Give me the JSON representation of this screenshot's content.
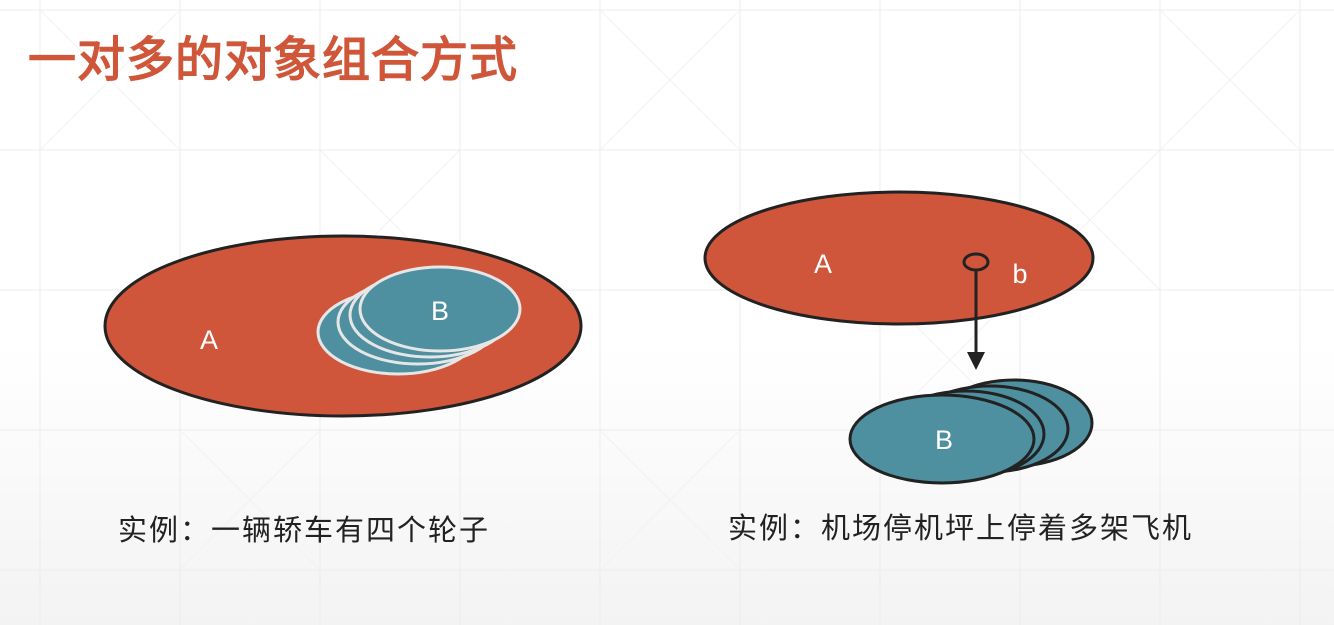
{
  "slide": {
    "title": "一对多的对象组合方式"
  },
  "left_diagram": {
    "outer_label": "A",
    "inner_label": "B",
    "caption": "实例：一辆轿车有四个轮子"
  },
  "right_diagram": {
    "outer_label": "A",
    "reference_label": "b",
    "target_label": "B",
    "caption": "实例：机场停机坪上停着多架飞机"
  },
  "colors": {
    "title": "#d0563a",
    "container_fill": "#cf563b",
    "component_fill": "#4e8fa0",
    "outline": "#222222",
    "inner_outline": "#e6e6e6",
    "caption_text": "#222222"
  }
}
